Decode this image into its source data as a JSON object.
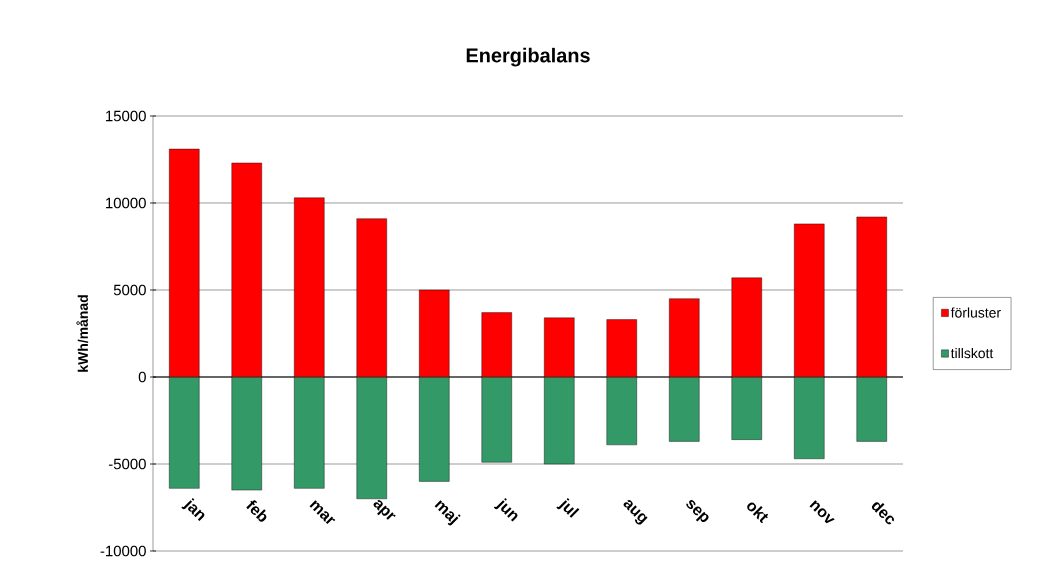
{
  "chart_data": {
    "type": "bar",
    "title": "Energibalans",
    "ylabel": "kWh/månad",
    "categories": [
      "jan",
      "feb",
      "mar",
      "apr",
      "maj",
      "jun",
      "jul",
      "aug",
      "sep",
      "okt",
      "nov",
      "dec"
    ],
    "series": [
      {
        "name": "förluster",
        "color": "#ff0000",
        "values": [
          13100,
          12300,
          10300,
          9100,
          5000,
          3700,
          3400,
          3300,
          4500,
          5700,
          8800,
          9200
        ]
      },
      {
        "name": "tillskott",
        "color": "#339966",
        "values": [
          -6400,
          -6500,
          -6400,
          -7000,
          -6000,
          -4900,
          -5000,
          -3900,
          -3700,
          -3600,
          -4700,
          -3700
        ]
      }
    ],
    "ylim": [
      -10000,
      15000
    ],
    "yticks": [
      -10000,
      -5000,
      0,
      5000,
      10000,
      15000
    ],
    "grid": "y",
    "stacked": true,
    "legend": "right"
  }
}
